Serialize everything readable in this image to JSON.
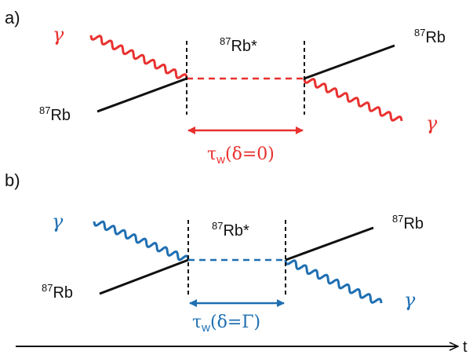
{
  "panels": [
    {
      "label": "a)",
      "photon_in": "γ",
      "photon_out": "γ",
      "atom_in_sup": "87",
      "atom_in": "Rb",
      "atom_out_sup": "87",
      "atom_out": "Rb",
      "excited_sup": "87",
      "excited": "Rb*",
      "delay_tau": "τ",
      "delay_sub": "w",
      "delay_arg": "(δ=0)",
      "color": "#e8312f"
    },
    {
      "label": "b)",
      "photon_in": "γ",
      "photon_out": "γ",
      "atom_in_sup": "87",
      "atom_in": "Rb",
      "atom_out_sup": "87",
      "atom_out": "Rb",
      "excited_sup": "87",
      "excited": "Rb*",
      "delay_tau": "τ",
      "delay_sub": "w",
      "delay_arg": "(δ=Γ)",
      "color": "#1f6fb2"
    }
  ],
  "time_axis": {
    "label": "t"
  }
}
